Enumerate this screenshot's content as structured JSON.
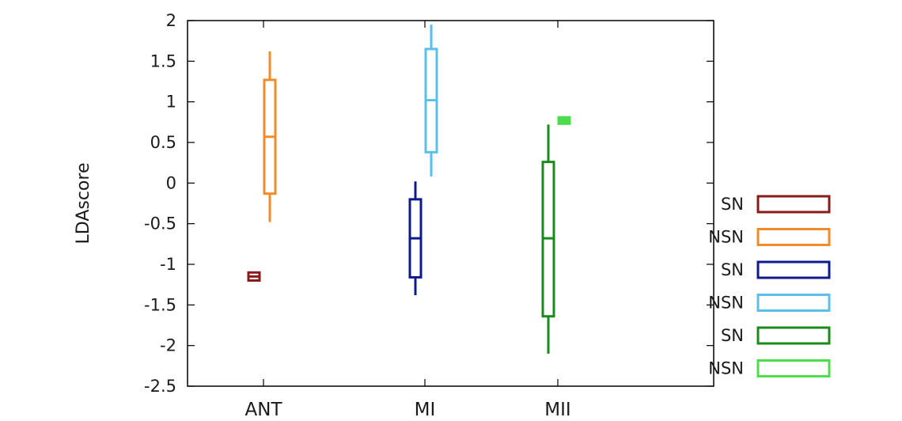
{
  "chart_data": {
    "type": "boxplot",
    "title": "",
    "xlabel": "",
    "ylabel": "LDAscore",
    "categories": [
      "ANT",
      "MI",
      "MII"
    ],
    "ylim": [
      -2.5,
      2
    ],
    "yticks": [
      2,
      1.5,
      1,
      0.5,
      0,
      -0.5,
      -1,
      -1.5,
      -2,
      -2.5
    ],
    "ytick_labels": [
      "2",
      "1.5",
      "1",
      "0.5",
      "0",
      "-0.5",
      "-1",
      "-1.5",
      "-2",
      "-2.5"
    ],
    "grid": false,
    "legend_position": "right",
    "series": [
      {
        "name": "SN",
        "color": "#8b1a1a",
        "category": "ANT",
        "min": -1.18,
        "q1": -1.18,
        "median": -1.15,
        "q3": -1.12,
        "max": -1.12
      },
      {
        "name": "NSN",
        "color": "#f28c28",
        "category": "ANT",
        "min": -0.48,
        "q1": -0.13,
        "median": 0.57,
        "q3": 1.27,
        "max": 1.62
      },
      {
        "name": "SN",
        "color": "#0d1a8c",
        "category": "MI",
        "min": -1.38,
        "q1": -1.16,
        "median": -0.68,
        "q3": -0.2,
        "max": 0.02
      },
      {
        "name": "NSN",
        "color": "#5bbfea",
        "category": "MI",
        "min": 0.08,
        "q1": 0.38,
        "median": 1.02,
        "q3": 1.65,
        "max": 1.95
      },
      {
        "name": "SN",
        "color": "#1a8a1a",
        "category": "MII",
        "min": -2.1,
        "q1": -1.64,
        "median": -0.68,
        "q3": 0.26,
        "max": 0.72
      },
      {
        "name": "NSN",
        "color": "#4cdc4c",
        "category": "MII",
        "min": 0.75,
        "q1": 0.75,
        "median": 0.77,
        "q3": 0.79,
        "max": 0.79
      }
    ]
  }
}
